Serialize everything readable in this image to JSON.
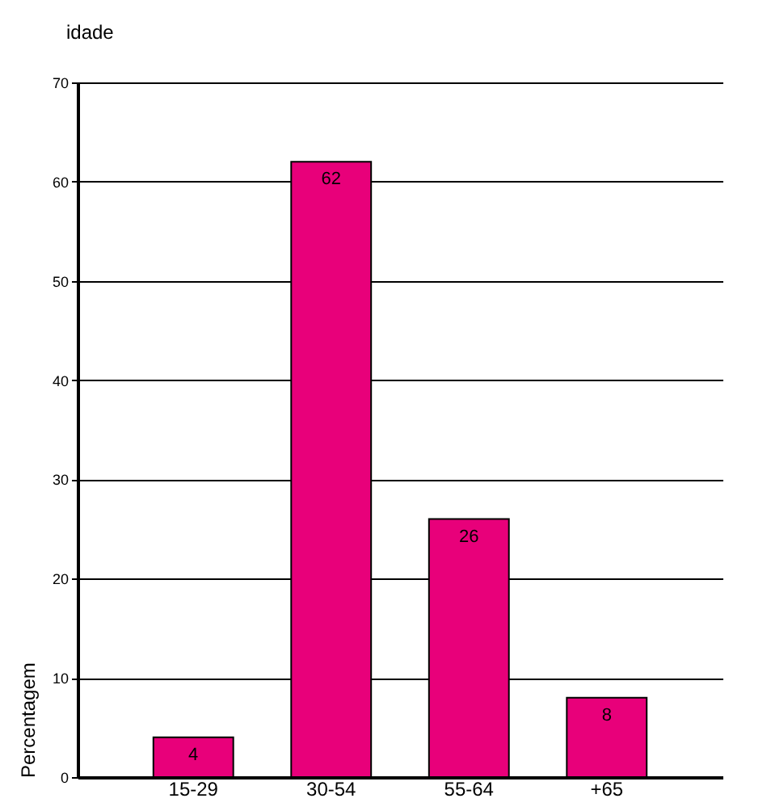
{
  "chart_data": {
    "type": "bar",
    "title": "idade",
    "ylabel": "Percentagem",
    "categories": [
      "15-29",
      "30-54",
      "55-64",
      "+65"
    ],
    "values": [
      4,
      62,
      26,
      8
    ],
    "color": "#e8007a",
    "ylim": [
      0,
      70
    ],
    "yticks": [
      0,
      10,
      20,
      30,
      40,
      50,
      60,
      70
    ],
    "grid": "y",
    "data_labels": true
  }
}
